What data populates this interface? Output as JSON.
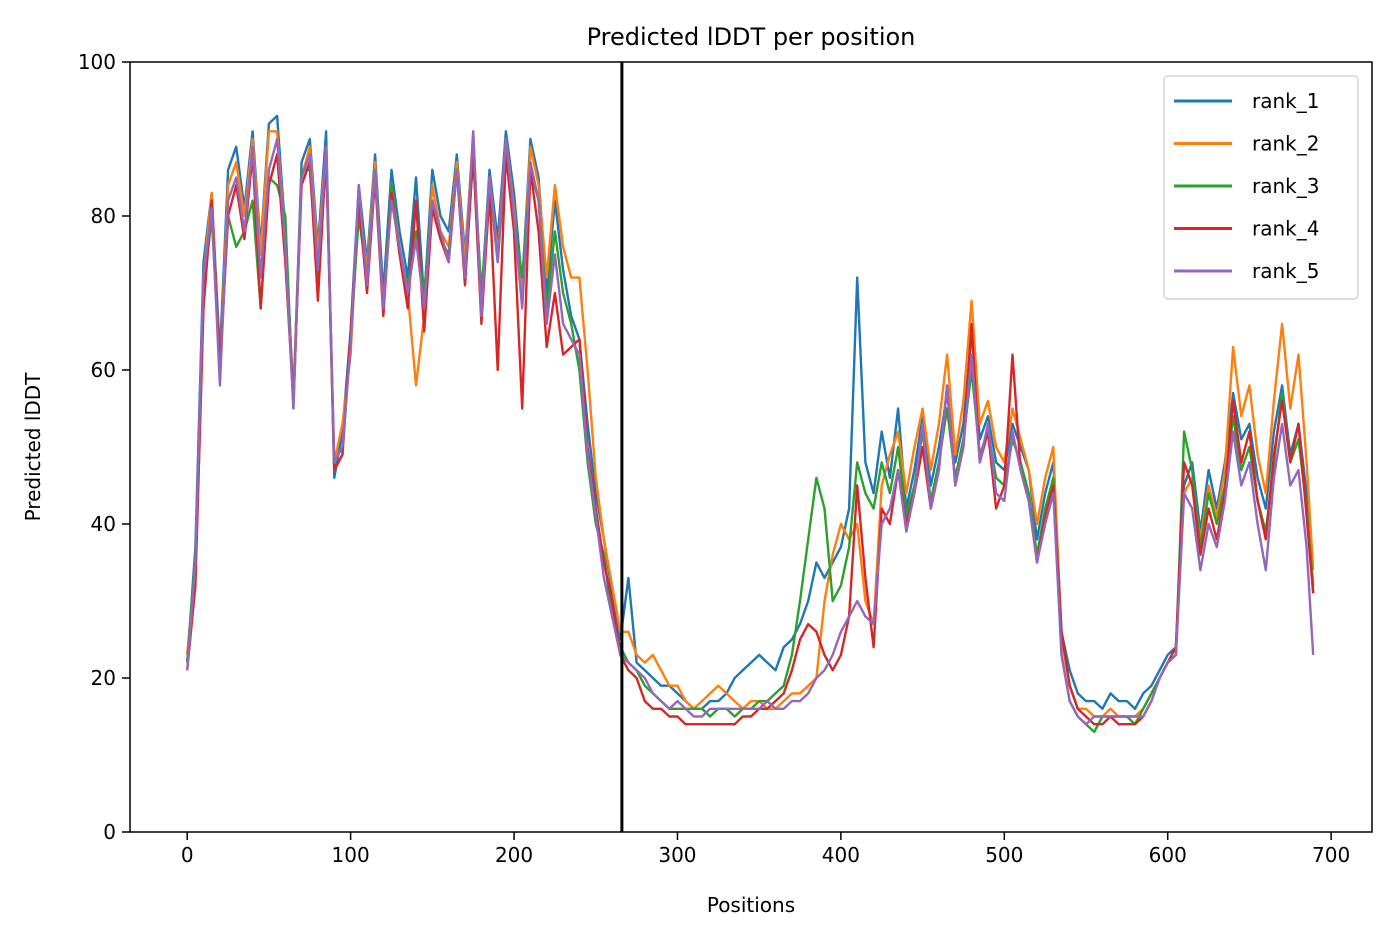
{
  "chart_data": {
    "type": "line",
    "title": "Predicted lDDT per position",
    "xlabel": "Positions",
    "ylabel": "Predicted lDDT",
    "xlim": [
      -35,
      725
    ],
    "ylim": [
      0,
      100
    ],
    "xticks": [
      0,
      100,
      200,
      300,
      400,
      500,
      600,
      700
    ],
    "yticks": [
      0,
      20,
      40,
      60,
      80,
      100
    ],
    "grid": false,
    "legend_position": "top-right",
    "vline": 266,
    "x": [
      0,
      5,
      10,
      15,
      20,
      25,
      30,
      35,
      40,
      45,
      50,
      55,
      60,
      65,
      70,
      75,
      80,
      85,
      90,
      95,
      100,
      105,
      110,
      115,
      120,
      125,
      130,
      135,
      140,
      145,
      150,
      155,
      160,
      165,
      170,
      175,
      180,
      185,
      190,
      195,
      200,
      205,
      210,
      215,
      220,
      225,
      230,
      235,
      240,
      245,
      250,
      255,
      260,
      265,
      270,
      275,
      280,
      285,
      290,
      295,
      300,
      305,
      310,
      315,
      320,
      325,
      330,
      335,
      340,
      345,
      350,
      355,
      360,
      365,
      370,
      375,
      380,
      385,
      390,
      395,
      400,
      405,
      410,
      415,
      420,
      425,
      430,
      435,
      440,
      445,
      450,
      455,
      460,
      465,
      470,
      475,
      480,
      485,
      490,
      495,
      500,
      505,
      510,
      515,
      520,
      525,
      530,
      535,
      540,
      545,
      550,
      555,
      560,
      565,
      570,
      575,
      580,
      585,
      590,
      595,
      600,
      605,
      610,
      615,
      620,
      625,
      630,
      635,
      640,
      645,
      650,
      655,
      660,
      665,
      670,
      675,
      680,
      685,
      689
    ],
    "series": [
      {
        "name": "rank_1",
        "color": "#1f77b4",
        "values": [
          22,
          37,
          74,
          83,
          62,
          86,
          89,
          81,
          91,
          76,
          92,
          93,
          78,
          56,
          87,
          90,
          76,
          91,
          46,
          52,
          65,
          84,
          74,
          88,
          70,
          86,
          78,
          72,
          85,
          69,
          86,
          80,
          78,
          88,
          75,
          90,
          69,
          86,
          77,
          91,
          83,
          71,
          90,
          85,
          70,
          82,
          73,
          67,
          64,
          53,
          44,
          38,
          31,
          25,
          33,
          22,
          21,
          20,
          19,
          19,
          18,
          17,
          16,
          16,
          17,
          17,
          18,
          20,
          21,
          22,
          23,
          22,
          21,
          24,
          25,
          27,
          30,
          35,
          33,
          35,
          37,
          42,
          72,
          48,
          44,
          52,
          46,
          55,
          42,
          47,
          54,
          45,
          50,
          57,
          48,
          53,
          65,
          51,
          54,
          48,
          47,
          53,
          50,
          47,
          38,
          44,
          48,
          26,
          21,
          18,
          17,
          17,
          16,
          18,
          17,
          17,
          16,
          18,
          19,
          21,
          23,
          24,
          45,
          48,
          39,
          47,
          42,
          48,
          57,
          51,
          53,
          46,
          42,
          52,
          58,
          49,
          53,
          44,
          31
        ]
      },
      {
        "name": "rank_2",
        "color": "#ff7f0e",
        "values": [
          23,
          35,
          72,
          83,
          60,
          84,
          87,
          80,
          90,
          75,
          91,
          91,
          77,
          57,
          85,
          89,
          75,
          89,
          48,
          53,
          62,
          82,
          73,
          87,
          68,
          84,
          76,
          70,
          58,
          67,
          84,
          78,
          76,
          87,
          74,
          91,
          68,
          85,
          75,
          90,
          81,
          70,
          89,
          84,
          72,
          84,
          76,
          72,
          72,
          60,
          46,
          38,
          32,
          26,
          26,
          23,
          22,
          23,
          21,
          19,
          19,
          17,
          16,
          17,
          18,
          19,
          18,
          17,
          16,
          17,
          17,
          16,
          16,
          17,
          18,
          18,
          19,
          20,
          30,
          36,
          40,
          38,
          40,
          30,
          27,
          45,
          49,
          52,
          44,
          50,
          55,
          47,
          53,
          62,
          49,
          56,
          69,
          53,
          56,
          50,
          48,
          55,
          51,
          47,
          40,
          46,
          50,
          25,
          19,
          16,
          16,
          15,
          15,
          16,
          15,
          15,
          15,
          16,
          18,
          20,
          22,
          23,
          44,
          46,
          38,
          45,
          41,
          47,
          63,
          54,
          58,
          49,
          44,
          56,
          66,
          55,
          62,
          48,
          34
        ]
      },
      {
        "name": "rank_3",
        "color": "#2ca02c",
        "values": [
          22,
          36,
          70,
          80,
          60,
          80,
          76,
          78,
          82,
          68,
          85,
          84,
          80,
          55,
          86,
          86,
          72,
          88,
          47,
          49,
          64,
          80,
          72,
          86,
          68,
          84,
          75,
          71,
          78,
          70,
          82,
          77,
          75,
          86,
          72,
          88,
          70,
          84,
          74,
          88,
          80,
          72,
          86,
          82,
          68,
          78,
          70,
          66,
          60,
          48,
          40,
          36,
          28,
          24,
          22,
          21,
          19,
          18,
          17,
          16,
          16,
          16,
          16,
          16,
          15,
          16,
          16,
          15,
          16,
          16,
          17,
          17,
          18,
          19,
          23,
          30,
          38,
          46,
          42,
          30,
          32,
          37,
          48,
          44,
          42,
          48,
          44,
          50,
          41,
          45,
          52,
          43,
          48,
          55,
          46,
          51,
          60,
          49,
          52,
          46,
          45,
          51,
          48,
          44,
          36,
          42,
          46,
          23,
          17,
          15,
          14,
          13,
          15,
          15,
          15,
          15,
          14,
          16,
          18,
          20,
          22,
          23,
          52,
          47,
          37,
          44,
          40,
          45,
          54,
          47,
          50,
          43,
          39,
          48,
          57,
          48,
          51,
          42,
          32
        ]
      },
      {
        "name": "rank_4",
        "color": "#d62728",
        "values": [
          21,
          32,
          68,
          82,
          60,
          80,
          84,
          77,
          88,
          68,
          84,
          88,
          74,
          56,
          84,
          87,
          69,
          88,
          47,
          49,
          65,
          82,
          70,
          85,
          67,
          83,
          75,
          68,
          82,
          65,
          81,
          77,
          74,
          86,
          71,
          88,
          66,
          83,
          60,
          88,
          78,
          55,
          86,
          78,
          63,
          70,
          62,
          63,
          64,
          50,
          42,
          35,
          30,
          23,
          21,
          20,
          17,
          16,
          16,
          15,
          15,
          14,
          14,
          14,
          14,
          14,
          14,
          14,
          15,
          15,
          16,
          16,
          17,
          18,
          21,
          25,
          27,
          26,
          23,
          21,
          23,
          28,
          45,
          33,
          24,
          42,
          40,
          47,
          40,
          44,
          50,
          42,
          47,
          58,
          45,
          50,
          66,
          48,
          52,
          42,
          45,
          62,
          47,
          43,
          35,
          41,
          45,
          26,
          19,
          16,
          15,
          14,
          14,
          15,
          14,
          14,
          14,
          15,
          17,
          20,
          22,
          24,
          48,
          45,
          36,
          42,
          38,
          44,
          56,
          48,
          52,
          43,
          38,
          49,
          56,
          48,
          53,
          41,
          31
        ]
      },
      {
        "name": "rank_5",
        "color": "#9467bd",
        "values": [
          21,
          35,
          72,
          81,
          58,
          82,
          85,
          78,
          89,
          72,
          86,
          90,
          76,
          55,
          85,
          88,
          73,
          89,
          48,
          50,
          63,
          84,
          71,
          86,
          68,
          82,
          76,
          70,
          77,
          68,
          82,
          78,
          74,
          86,
          72,
          91,
          67,
          85,
          74,
          90,
          80,
          68,
          87,
          82,
          66,
          75,
          66,
          64,
          62,
          49,
          41,
          33,
          28,
          23,
          22,
          21,
          20,
          18,
          17,
          16,
          17,
          16,
          15,
          15,
          16,
          16,
          16,
          16,
          16,
          16,
          16,
          17,
          16,
          16,
          17,
          17,
          18,
          20,
          21,
          23,
          26,
          28,
          30,
          28,
          27,
          40,
          42,
          47,
          39,
          44,
          53,
          42,
          47,
          58,
          45,
          50,
          62,
          48,
          53,
          44,
          43,
          52,
          47,
          43,
          35,
          40,
          44,
          23,
          17,
          15,
          14,
          15,
          15,
          15,
          15,
          15,
          15,
          15,
          17,
          20,
          22,
          23,
          44,
          42,
          34,
          40,
          37,
          43,
          52,
          45,
          48,
          40,
          34,
          46,
          53,
          45,
          47,
          37,
          23
        ]
      }
    ]
  }
}
